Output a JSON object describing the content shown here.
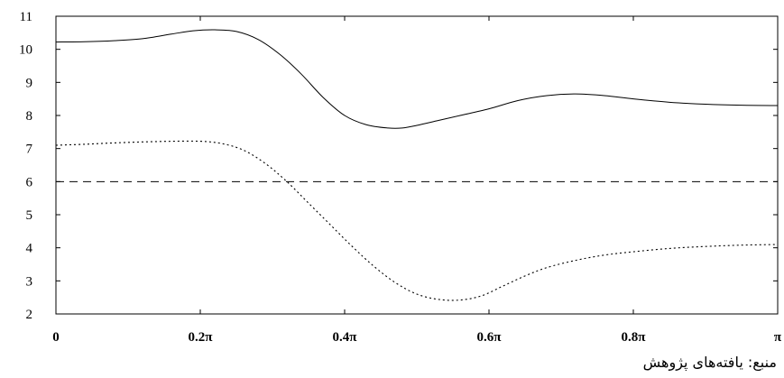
{
  "chart_data": {
    "type": "line",
    "title": "",
    "xlabel": "",
    "ylabel": "",
    "xlim": [
      0,
      1
    ],
    "ylim": [
      2,
      11
    ],
    "grid": false,
    "legend": "none",
    "x_ticks": [
      {
        "value": 0,
        "label": "0"
      },
      {
        "value": 0.2,
        "label": "0.2π"
      },
      {
        "value": 0.4,
        "label": "0.4π"
      },
      {
        "value": 0.6,
        "label": "0.6π"
      },
      {
        "value": 0.8,
        "label": "0.8π"
      },
      {
        "value": 1.0,
        "label": "π"
      }
    ],
    "y_ticks": [
      {
        "value": 2,
        "label": "2"
      },
      {
        "value": 3,
        "label": "3"
      },
      {
        "value": 4,
        "label": "4"
      },
      {
        "value": 5,
        "label": "5"
      },
      {
        "value": 6,
        "label": "6"
      },
      {
        "value": 7,
        "label": "7"
      },
      {
        "value": 8,
        "label": "8"
      },
      {
        "value": 9,
        "label": "9"
      },
      {
        "value": 10,
        "label": "10"
      },
      {
        "value": 11,
        "label": "11"
      }
    ],
    "series": [
      {
        "line_style": "solid",
        "color": "#000000",
        "x": [
          0,
          0.04,
          0.08,
          0.12,
          0.16,
          0.19,
          0.22,
          0.25,
          0.28,
          0.31,
          0.34,
          0.37,
          0.4,
          0.43,
          0.46,
          0.48,
          0.5,
          0.53,
          0.56,
          0.6,
          0.64,
          0.68,
          0.72,
          0.76,
          0.8,
          0.85,
          0.9,
          0.95,
          1.0
        ],
        "values": [
          10.22,
          10.23,
          10.26,
          10.32,
          10.46,
          10.56,
          10.59,
          10.54,
          10.3,
          9.85,
          9.25,
          8.55,
          8.0,
          7.72,
          7.62,
          7.62,
          7.7,
          7.85,
          8.0,
          8.2,
          8.45,
          8.6,
          8.65,
          8.6,
          8.5,
          8.4,
          8.34,
          8.31,
          8.3
        ]
      },
      {
        "line_style": "dotted",
        "color": "#000000",
        "x": [
          0,
          0.04,
          0.08,
          0.12,
          0.16,
          0.2,
          0.23,
          0.26,
          0.29,
          0.32,
          0.35,
          0.38,
          0.41,
          0.44,
          0.47,
          0.5,
          0.53,
          0.56,
          0.59,
          0.62,
          0.65,
          0.68,
          0.72,
          0.76,
          0.8,
          0.85,
          0.9,
          0.95,
          1.0
        ],
        "values": [
          7.1,
          7.13,
          7.17,
          7.2,
          7.22,
          7.22,
          7.15,
          6.95,
          6.55,
          6.0,
          5.35,
          4.7,
          4.05,
          3.45,
          2.95,
          2.6,
          2.44,
          2.42,
          2.55,
          2.85,
          3.15,
          3.4,
          3.62,
          3.78,
          3.88,
          3.98,
          4.04,
          4.08,
          4.1
        ]
      },
      {
        "line_style": "dashed",
        "color": "#000000",
        "x": [
          0,
          1.0
        ],
        "values": [
          6.0,
          6.0
        ]
      }
    ]
  },
  "caption": {
    "source": "منبع: یافته‌های پژوهش"
  }
}
